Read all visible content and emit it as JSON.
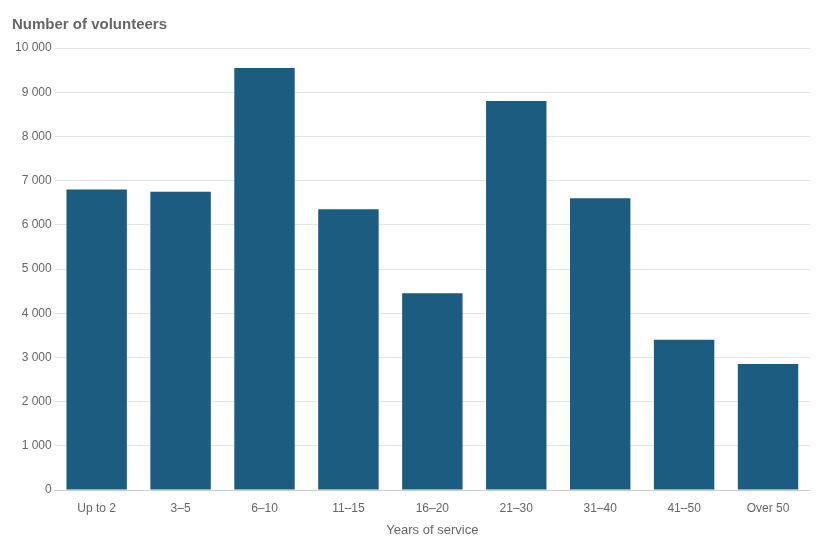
{
  "chart_data": {
    "type": "bar",
    "title": "Number of volunteers",
    "xlabel": "Years of service",
    "categories": [
      "Up to 2",
      "3–5",
      "6–10",
      "11–15",
      "16–20",
      "21–30",
      "31–40",
      "41–50",
      "Over 50"
    ],
    "values": [
      6800,
      6750,
      9550,
      6350,
      4450,
      8800,
      6600,
      3400,
      2850
    ],
    "color": "#1c5c80",
    "ylim": [
      0,
      10000
    ],
    "yticks": [
      0,
      {
        "value": 1000,
        "label": "1 000"
      },
      {
        "value": 2000,
        "label": "2 000"
      },
      {
        "value": 3000,
        "label": "3 000"
      },
      {
        "value": 4000,
        "label": "4 000"
      },
      {
        "value": 5000,
        "label": "5 000"
      },
      {
        "value": 6000,
        "label": "6 000"
      },
      {
        "value": 7000,
        "label": "7 000"
      },
      {
        "value": 8000,
        "label": "8 000"
      },
      {
        "value": 9000,
        "label": "9 000"
      },
      {
        "value": 10000,
        "label": "10 000"
      }
    ],
    "grid": true
  }
}
